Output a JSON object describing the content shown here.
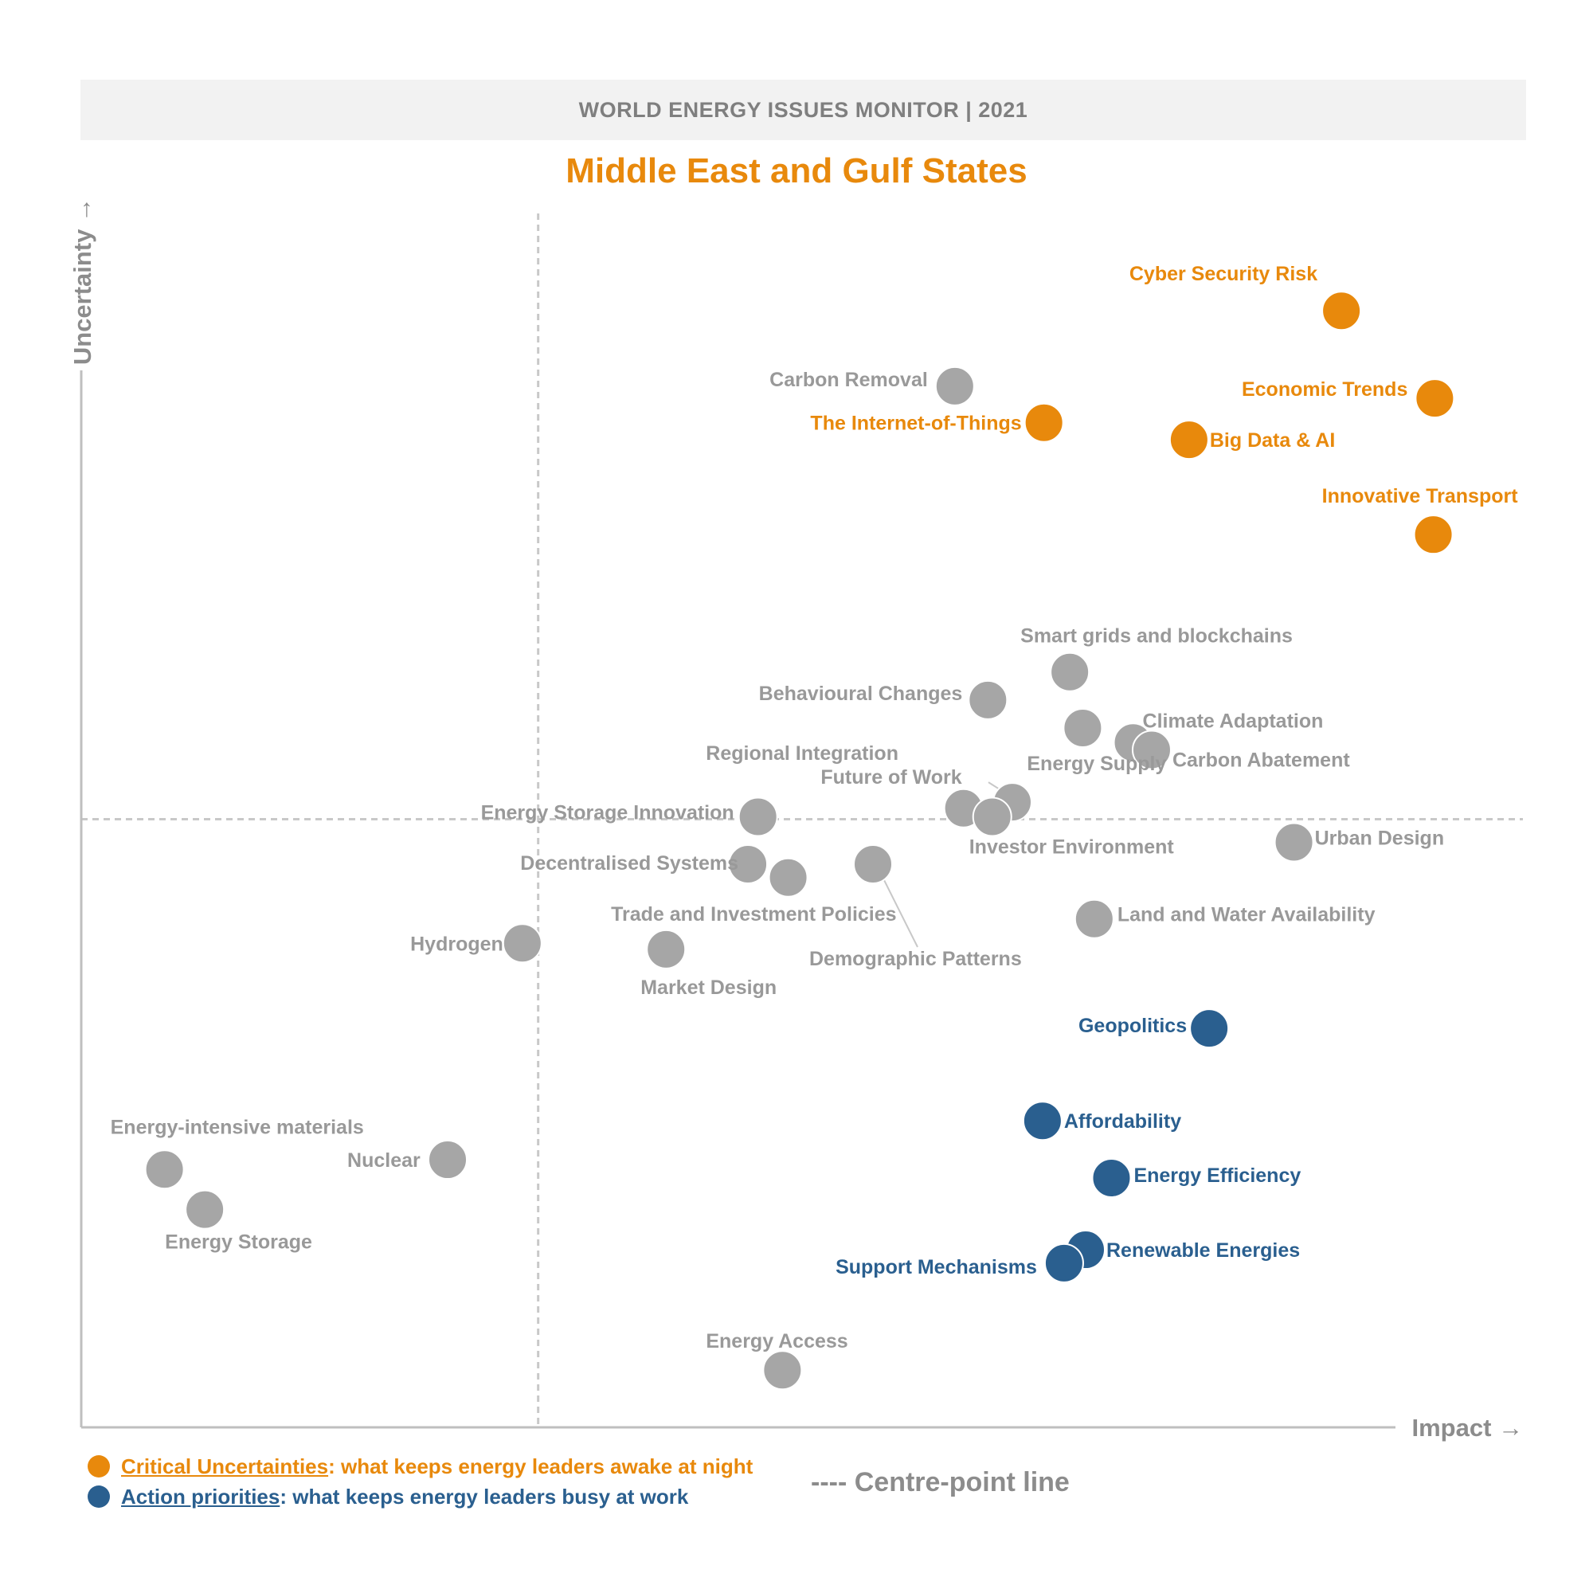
{
  "header": {
    "banner": "WORLD ENERGY ISSUES MONITOR | 2021",
    "region": "Middle East and Gulf States"
  },
  "legend": {
    "critical": {
      "name": "Critical Uncertainties",
      "desc": ": what keeps energy leaders awake at night",
      "color": "#e8890c"
    },
    "action": {
      "name": "Action priorities",
      "desc": ": what keeps energy leaders busy at work",
      "color": "#2a5f8f"
    },
    "centre_line": "---- Centre-point line"
  },
  "chart_data": {
    "type": "scatter",
    "title": "Middle East and Gulf States",
    "xlabel": "Impact →",
    "ylabel": "Uncertainty →",
    "xlim": [
      0,
      1
    ],
    "ylim": [
      0,
      1
    ],
    "centre_point": {
      "x": 0.318,
      "y": 0.5
    },
    "colors": {
      "critical": "#e8890c",
      "action": "#2a5f8f",
      "other": "#a6a6a6"
    },
    "points": [
      {
        "name": "Cyber Security Risk",
        "x": 0.877,
        "y": 0.918,
        "cat": "critical"
      },
      {
        "name": "Economic Trends",
        "x": 0.942,
        "y": 0.846,
        "cat": "critical"
      },
      {
        "name": "The Internet-of-Things",
        "x": 0.67,
        "y": 0.826,
        "cat": "critical"
      },
      {
        "name": "Big Data & AI",
        "x": 0.771,
        "y": 0.812,
        "cat": "critical"
      },
      {
        "name": "Innovative Transport",
        "x": 0.941,
        "y": 0.734,
        "cat": "critical"
      },
      {
        "name": "Carbon Removal",
        "x": 0.608,
        "y": 0.856,
        "cat": "other"
      },
      {
        "name": "Smart grids and blockchains",
        "x": 0.688,
        "y": 0.621,
        "cat": "other"
      },
      {
        "name": "Behavioural Changes",
        "x": 0.631,
        "y": 0.598,
        "cat": "other"
      },
      {
        "name": "Energy Supply",
        "x": 0.697,
        "y": 0.575,
        "cat": "other"
      },
      {
        "name": "Climate Adaptation",
        "x": 0.732,
        "y": 0.563,
        "cat": "other"
      },
      {
        "name": "Carbon Abatement",
        "x": 0.745,
        "y": 0.557,
        "cat": "other"
      },
      {
        "name": "Regional Integration",
        "x": 0.648,
        "y": 0.514,
        "cat": "other"
      },
      {
        "name": "Future of Work",
        "x": 0.614,
        "y": 0.509,
        "cat": "other"
      },
      {
        "name": "Investor Environment",
        "x": 0.634,
        "y": 0.502,
        "cat": "other"
      },
      {
        "name": "Energy Storage Innovation",
        "x": 0.471,
        "y": 0.502,
        "cat": "other"
      },
      {
        "name": "Urban Design",
        "x": 0.844,
        "y": 0.481,
        "cat": "other"
      },
      {
        "name": "Decentralised Systems",
        "x": 0.464,
        "y": 0.463,
        "cat": "other"
      },
      {
        "name": "Trade and Investment Policies",
        "x": 0.492,
        "y": 0.452,
        "cat": "other"
      },
      {
        "name": "Demographic Patterns",
        "x": 0.551,
        "y": 0.463,
        "cat": "other"
      },
      {
        "name": "Land and Water Availability",
        "x": 0.705,
        "y": 0.418,
        "cat": "other"
      },
      {
        "name": "Hydrogen",
        "x": 0.307,
        "y": 0.398,
        "cat": "other"
      },
      {
        "name": "Market Design",
        "x": 0.407,
        "y": 0.393,
        "cat": "other"
      },
      {
        "name": "Geopolitics",
        "x": 0.785,
        "y": 0.328,
        "cat": "action"
      },
      {
        "name": "Affordability",
        "x": 0.669,
        "y": 0.252,
        "cat": "action"
      },
      {
        "name": "Energy Efficiency",
        "x": 0.717,
        "y": 0.205,
        "cat": "action"
      },
      {
        "name": "Renewable Energies",
        "x": 0.699,
        "y": 0.146,
        "cat": "action"
      },
      {
        "name": "Support Mechanisms",
        "x": 0.684,
        "y": 0.135,
        "cat": "action"
      },
      {
        "name": "Energy-intensive materials",
        "x": 0.058,
        "y": 0.212,
        "cat": "other"
      },
      {
        "name": "Nuclear",
        "x": 0.255,
        "y": 0.22,
        "cat": "other"
      },
      {
        "name": "Energy Storage",
        "x": 0.086,
        "y": 0.179,
        "cat": "other"
      },
      {
        "name": "Energy Access",
        "x": 0.488,
        "y": 0.047,
        "cat": "other"
      }
    ]
  }
}
